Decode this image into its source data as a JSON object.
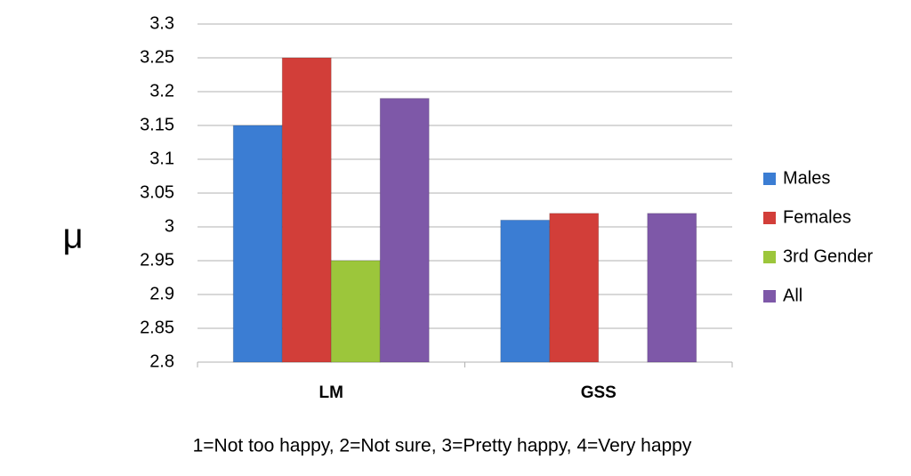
{
  "chart_data": {
    "type": "bar",
    "y_label": "μ",
    "x_label": "1=Not too happy, 2=Not sure, 3=Pretty happy, 4=Very happy",
    "categories": [
      "LM",
      "GSS"
    ],
    "series": [
      {
        "name": "Males",
        "color": "#3b7dd3",
        "values": [
          3.15,
          3.01
        ]
      },
      {
        "name": "Females",
        "color": "#d23e39",
        "values": [
          3.25,
          3.02
        ]
      },
      {
        "name": "3rd Gender",
        "color": "#9cc63b",
        "values": [
          2.95,
          null
        ]
      },
      {
        "name": "All",
        "color": "#7e58a8",
        "values": [
          3.19,
          3.02
        ]
      }
    ],
    "ylim": [
      2.8,
      3.3
    ],
    "yticks": [
      2.8,
      2.85,
      2.9,
      2.95,
      3,
      3.05,
      3.1,
      3.15,
      3.2,
      3.25,
      3.3
    ],
    "grid": true,
    "legend": "right"
  }
}
